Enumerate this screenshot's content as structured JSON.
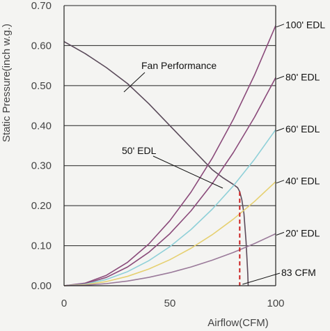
{
  "chart_data": {
    "type": "line",
    "xlabel": "Airflow(CFM)",
    "ylabel": "Static Pressure(inch w.g.)",
    "xlim": [
      0,
      100
    ],
    "ylim": [
      0,
      0.7
    ],
    "xticks": [
      0,
      50,
      100
    ],
    "yticks": [
      0,
      0.1,
      0.2,
      0.3,
      0.4,
      0.5,
      0.6,
      0.7
    ],
    "xtick_labels": [
      "0",
      "50",
      "100"
    ],
    "ytick_labels": [
      "0.00",
      "0.10",
      "0.20",
      "0.30",
      "0.40",
      "0.50",
      "0.60",
      "0.70"
    ],
    "grid": "horizontal",
    "series": [
      {
        "name": "Fan Performance",
        "color": "#5a4a5a",
        "x": [
          0,
          10,
          20,
          30,
          40,
          50,
          60,
          70,
          75,
          80,
          82,
          83,
          84,
          85,
          86,
          86.8,
          87
        ],
        "y": [
          0.61,
          0.58,
          0.545,
          0.505,
          0.455,
          0.4,
          0.345,
          0.29,
          0.27,
          0.253,
          0.245,
          0.235,
          0.215,
          0.18,
          0.11,
          0.03,
          0
        ]
      },
      {
        "name": "100' EDL",
        "color": "#8a4a7a",
        "x": [
          0,
          10,
          20,
          30,
          40,
          50,
          60,
          70,
          80,
          90,
          100
        ],
        "y": [
          0,
          0.0065,
          0.026,
          0.0585,
          0.104,
          0.1625,
          0.234,
          0.3185,
          0.416,
          0.5265,
          0.65
        ]
      },
      {
        "name": "80' EDL",
        "color": "#8a4a7a",
        "x": [
          0,
          10,
          20,
          30,
          40,
          50,
          60,
          70,
          80,
          90,
          100
        ],
        "y": [
          0,
          0.0052,
          0.0208,
          0.0468,
          0.0832,
          0.13,
          0.1872,
          0.2548,
          0.3328,
          0.4212,
          0.52
        ]
      },
      {
        "name": "60' EDL",
        "color": "#8fd0d8",
        "x": [
          0,
          10,
          20,
          30,
          40,
          50,
          60,
          70,
          80,
          90,
          100
        ],
        "y": [
          0,
          0.0039,
          0.0156,
          0.0351,
          0.0624,
          0.0975,
          0.1404,
          0.1911,
          0.2496,
          0.3159,
          0.39
        ]
      },
      {
        "name": "40' EDL",
        "color": "#e6d070",
        "x": [
          0,
          10,
          20,
          30,
          40,
          50,
          60,
          70,
          80,
          90,
          100
        ],
        "y": [
          0,
          0.0026,
          0.0104,
          0.0234,
          0.0416,
          0.065,
          0.0936,
          0.1274,
          0.1664,
          0.2106,
          0.26
        ]
      },
      {
        "name": "20' EDL",
        "color": "#9a7a9a",
        "x": [
          0,
          10,
          20,
          30,
          40,
          50,
          60,
          70,
          80,
          90,
          100
        ],
        "y": [
          0,
          0.0013,
          0.0052,
          0.0117,
          0.0208,
          0.0325,
          0.0468,
          0.0637,
          0.0832,
          0.1053,
          0.13
        ]
      }
    ],
    "operating_point": {
      "x": 83,
      "y": 0.235,
      "color": "#cc2222"
    },
    "annotations": {
      "fan_performance": "Fan Performance",
      "edl_50": "50' EDL",
      "cfm_83": "83 CFM"
    }
  }
}
